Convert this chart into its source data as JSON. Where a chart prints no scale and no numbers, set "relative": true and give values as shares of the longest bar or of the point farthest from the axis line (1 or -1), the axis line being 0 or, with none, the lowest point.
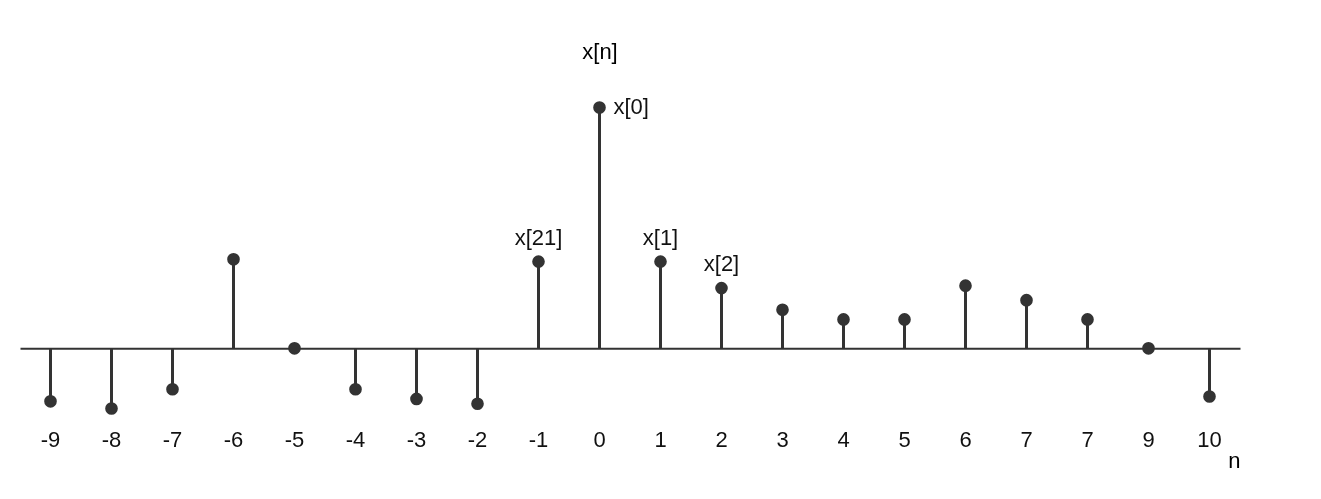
{
  "chart_data": {
    "type": "lollipop",
    "relative": true,
    "xlabel": "n",
    "ylabel": "x[n]",
    "color": "#333333",
    "marker": "circle",
    "categories": [
      "-9",
      "-8",
      "-7",
      "-6",
      "-5",
      "-4",
      "-3",
      "-2",
      "-1",
      "0",
      "1",
      "2",
      "3",
      "4",
      "5",
      "6",
      "7",
      "7",
      "9",
      "10"
    ],
    "values": [
      -0.22,
      -0.25,
      -0.17,
      0.37,
      0,
      -0.17,
      -0.21,
      -0.23,
      0.36,
      1,
      0.36,
      0.25,
      0.16,
      0.12,
      0.12,
      0.26,
      0.2,
      0.12,
      0,
      -0.2
    ],
    "annotations": [
      {
        "text": "x[0]",
        "x": "0",
        "y": 1
      },
      {
        "text": "x[21]",
        "x": "-1",
        "y": 0.36
      },
      {
        "text": "x[1]",
        "x": "1",
        "y": 0.36
      },
      {
        "text": "x[2]",
        "x": "2",
        "y": 0.25
      }
    ]
  }
}
